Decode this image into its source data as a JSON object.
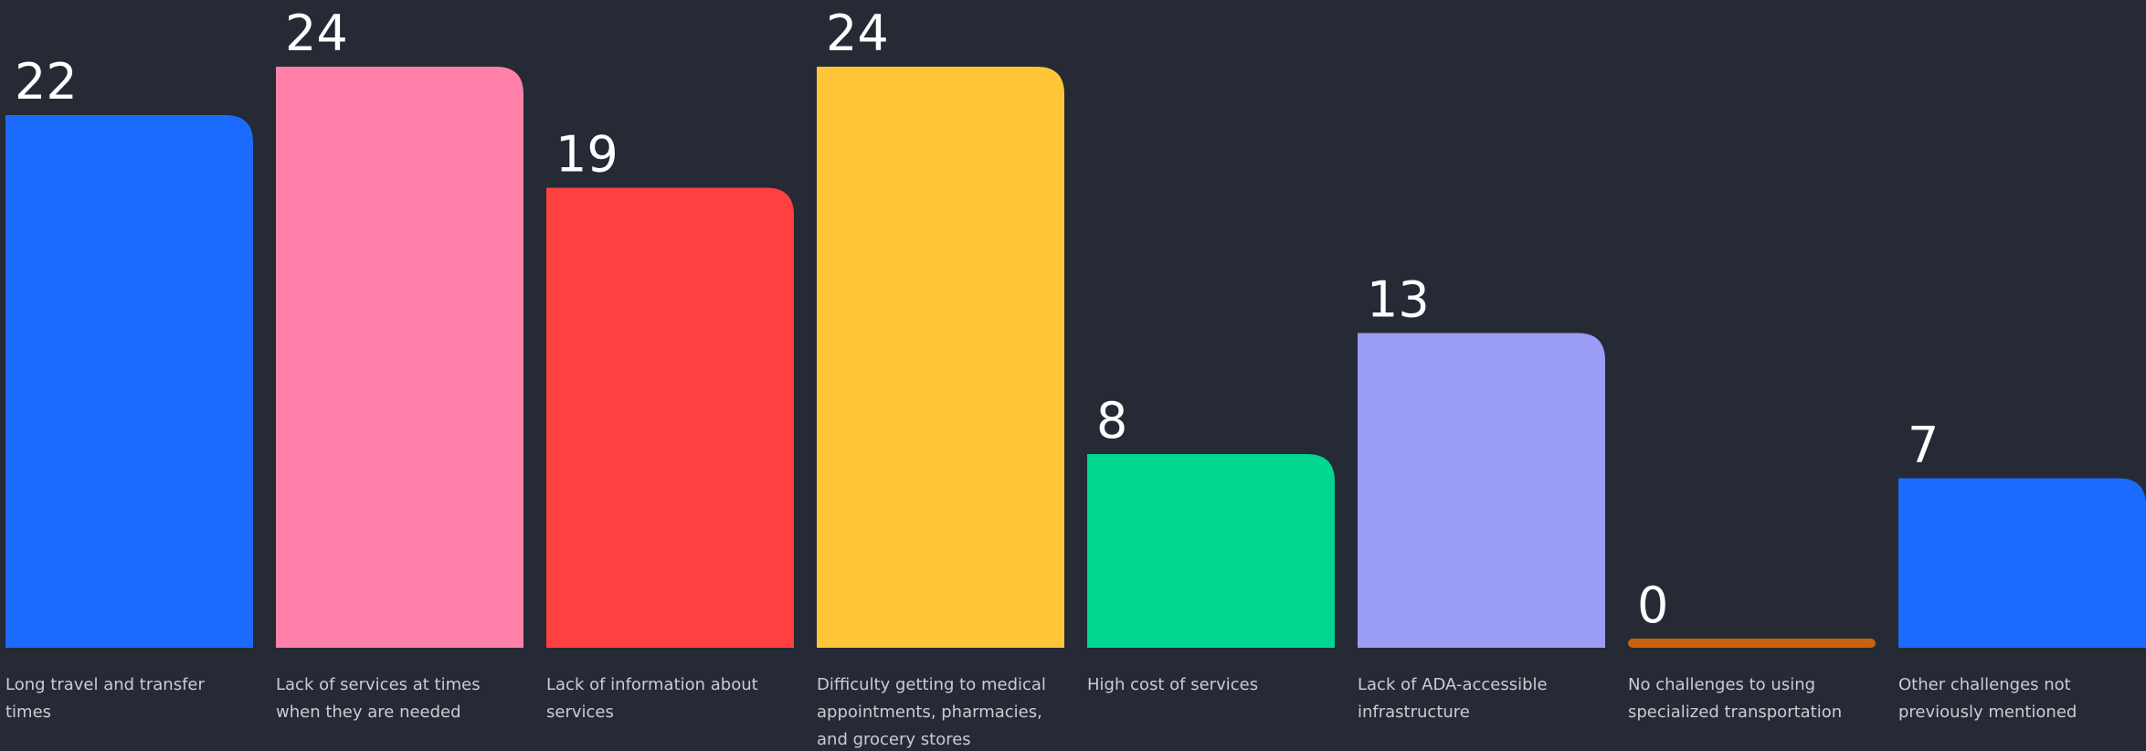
{
  "chart_data": {
    "type": "bar",
    "categories": [
      "Long travel and transfer times",
      "Lack of services at times when they are needed",
      "Lack of information about services",
      "Difficulty getting to medical appointments, pharmacies, and grocery stores",
      "High cost of services",
      "Lack of ADA-accessible infrastructure",
      "No challenges to using specialized transportation",
      "Other challenges not previously mentioned"
    ],
    "values": [
      22,
      24,
      19,
      24,
      8,
      13,
      0,
      7
    ],
    "colors": [
      "#1c6bff",
      "#ff80a8",
      "#ff4040",
      "#ffc637",
      "#00d68f",
      "#9b9cf5",
      "#c8620e",
      "#1c6bff"
    ]
  }
}
